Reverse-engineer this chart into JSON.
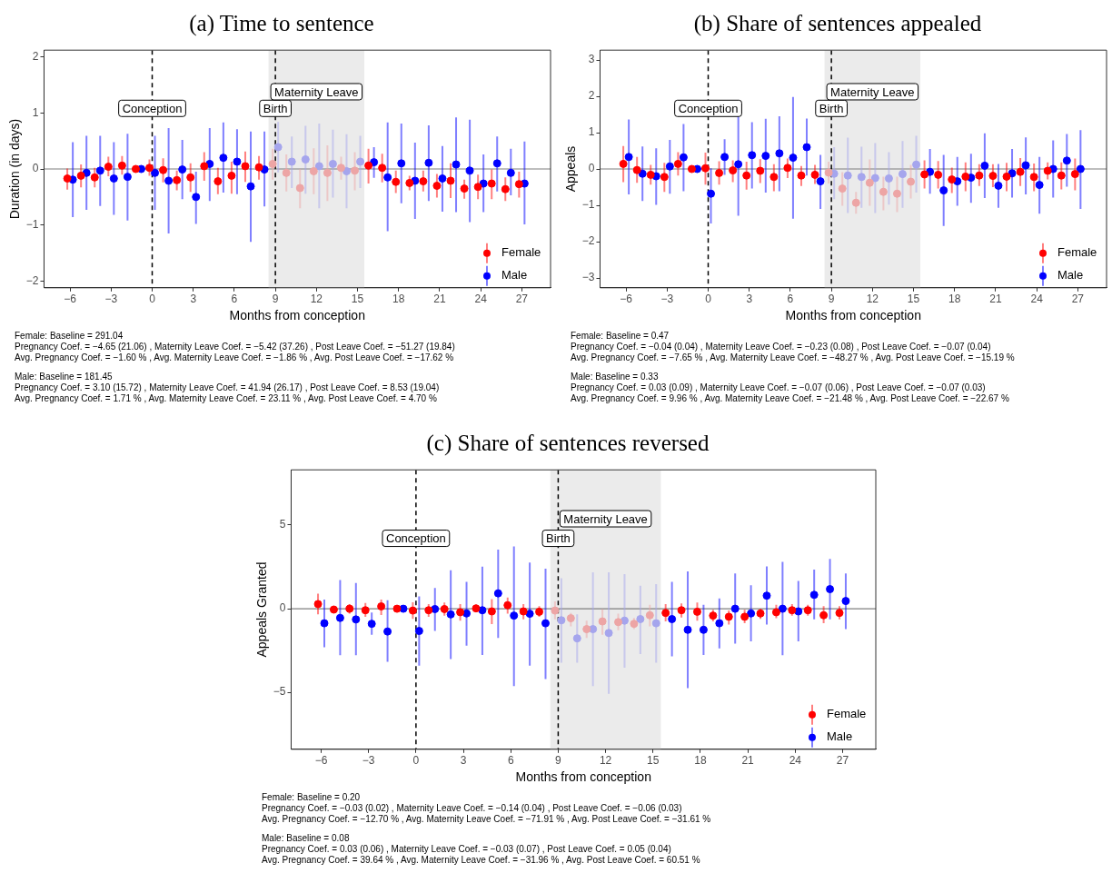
{
  "chart_data": [
    {
      "type": "scatter",
      "title": "(a) Time to sentence",
      "xlabel": "Months from conception",
      "ylabel": "Duration (in days)",
      "xlim": [
        -7.9,
        29.1
      ],
      "ylim": [
        -2.12,
        2.12
      ],
      "xticks": [
        -6,
        -3,
        0,
        3,
        6,
        9,
        12,
        15,
        18,
        21,
        24,
        27
      ],
      "yticks": [
        -2,
        -1,
        0,
        1,
        2
      ],
      "marker": "circle",
      "legend": "bottom right",
      "ref_lines": [
        {
          "axis": "y",
          "value": 0,
          "color": "#7f7f7f",
          "line_style": "solid"
        },
        {
          "axis": "x",
          "value": 0,
          "label": "Conception",
          "color": "#000000",
          "line_style": "dashed"
        },
        {
          "axis": "x",
          "value": 9,
          "label": "Birth",
          "color": "#000000",
          "line_style": "dashed"
        }
      ],
      "bands": [
        {
          "axis": "x",
          "from": 8.5,
          "to": 15.5,
          "label": "Maternity Leave",
          "color": "#ebebeb"
        }
      ],
      "series": [
        {
          "name": "Female",
          "color": "#ff0000",
          "x": [
            -6.2,
            -5.2,
            -4.2,
            -3.2,
            -2.2,
            -1.2,
            -0.2,
            0.8,
            1.8,
            2.8,
            3.8,
            4.8,
            5.8,
            6.8,
            7.8,
            8.8,
            9.8,
            10.8,
            11.8,
            12.8,
            13.8,
            14.8,
            15.8,
            16.8,
            17.8,
            18.8,
            19.8,
            20.8,
            21.8,
            22.8,
            23.8,
            24.8,
            25.8,
            26.8
          ],
          "colors": [
            "#ff0000",
            "#ff0000",
            "#ff0000",
            "#ff0000",
            "#ff0000",
            "#ff0000",
            "#ff0000",
            "#ff0000",
            "#ff0000",
            "#ff0000",
            "#ff0000",
            "#ff0000",
            "#ff0000",
            "#ff0000",
            "#ff0000",
            "#eda5a5",
            "#eda5a5",
            "#eda5a5",
            "#eda5a5",
            "#eda5a5",
            "#eda5a5",
            "#eda5a5",
            "#ff0000",
            "#ff0000",
            "#ff0000",
            "#ff0000",
            "#ff0000",
            "#ff0000",
            "#ff0000",
            "#ff0000",
            "#ff0000",
            "#ff0000",
            "#ff0000",
            "#ff0000"
          ],
          "values": [
            -0.17,
            -0.12,
            -0.15,
            0.04,
            0.06,
            0,
            0.02,
            -0.02,
            -0.2,
            -0.15,
            0.05,
            -0.22,
            -0.12,
            0.05,
            0.03,
            0.09,
            -0.07,
            -0.34,
            -0.04,
            -0.07,
            0.02,
            -0.03,
            0.06,
            0.02,
            -0.23,
            -0.25,
            -0.22,
            -0.3,
            -0.21,
            -0.35,
            -0.32,
            -0.26,
            -0.36,
            -0.27
          ],
          "errors": [
            [
              -0.37,
              0.01
            ],
            [
              -0.33,
              0.08
            ],
            [
              -0.33,
              0.02
            ],
            [
              -0.13,
              0.22
            ],
            [
              -0.1,
              0.23
            ],
            null,
            [
              -0.12,
              0.17
            ],
            [
              -0.24,
              0.19
            ],
            [
              -0.38,
              -0.03
            ],
            [
              -0.41,
              0.1
            ],
            [
              -0.21,
              0.3
            ],
            [
              -0.45,
              0.02
            ],
            [
              -0.44,
              0.13
            ],
            [
              -0.23,
              0.31
            ],
            [
              -0.19,
              0.23
            ],
            [
              -0.19,
              0.36
            ],
            [
              -0.4,
              0.26
            ],
            [
              -0.7,
              0
            ],
            [
              -0.45,
              0.37
            ],
            [
              -0.57,
              0.42
            ],
            [
              -0.19,
              0.22
            ],
            [
              -0.38,
              0.3
            ],
            [
              -0.26,
              0.36
            ],
            [
              -0.24,
              0.27
            ],
            [
              -0.43,
              -0.03
            ],
            [
              -0.38,
              -0.12
            ],
            [
              -0.4,
              -0.03
            ],
            [
              -0.51,
              -0.09
            ],
            [
              -0.52,
              0.1
            ],
            [
              -0.53,
              -0.19
            ],
            [
              -0.54,
              -0.1
            ],
            [
              -0.54,
              -0.01
            ],
            [
              -0.57,
              -0.15
            ],
            [
              -0.51,
              -0.05
            ]
          ]
        },
        {
          "name": "Male",
          "color": "#0000ff",
          "x": [
            -5.8,
            -4.8,
            -3.8,
            -2.8,
            -1.8,
            -0.8,
            0.2,
            1.2,
            2.2,
            3.2,
            4.2,
            5.2,
            6.2,
            7.2,
            8.2,
            9.2,
            10.2,
            11.2,
            12.2,
            13.2,
            14.2,
            15.2,
            16.2,
            17.2,
            18.2,
            19.2,
            20.2,
            21.2,
            22.2,
            23.2,
            24.2,
            25.2,
            26.2,
            27.2
          ],
          "colors": [
            "#0000ff",
            "#0000ff",
            "#0000ff",
            "#0000ff",
            "#0000ff",
            "#0000ff",
            "#0000ff",
            "#0000ff",
            "#0000ff",
            "#0000ff",
            "#0000ff",
            "#0000ff",
            "#0000ff",
            "#0000ff",
            "#0000ff",
            "#a5a5ed",
            "#a5a5ed",
            "#a5a5ed",
            "#a5a5ed",
            "#a5a5ed",
            "#a5a5ed",
            "#a5a5ed",
            "#0000ff",
            "#0000ff",
            "#0000ff",
            "#0000ff",
            "#0000ff",
            "#0000ff",
            "#0000ff",
            "#0000ff",
            "#0000ff",
            "#0000ff",
            "#0000ff",
            "#0000ff"
          ],
          "values": [
            -0.19,
            -0.07,
            -0.03,
            -0.17,
            -0.14,
            0,
            -0.07,
            -0.21,
            -0.01,
            -0.5,
            0.09,
            0.2,
            0.13,
            -0.31,
            -0.01,
            0.39,
            0.13,
            0.17,
            0.05,
            0.09,
            -0.04,
            0.13,
            0.12,
            -0.15,
            0.1,
            -0.21,
            0.11,
            -0.17,
            0.08,
            -0.03,
            -0.26,
            0.1,
            -0.07,
            -0.26
          ],
          "errors": [
            [
              -0.86,
              0.48
            ],
            [
              -0.73,
              0.59
            ],
            [
              -0.66,
              0.59
            ],
            [
              -0.82,
              0.48
            ],
            [
              -0.92,
              0.63
            ],
            null,
            [
              -0.73,
              0.59
            ],
            [
              -1.15,
              0.73
            ],
            [
              -0.54,
              0.52
            ],
            [
              -0.98,
              -0.05
            ],
            [
              -0.57,
              0.73
            ],
            [
              -0.42,
              0.83
            ],
            [
              -0.45,
              0.71
            ],
            [
              -1.3,
              0.67
            ],
            [
              -0.67,
              0.67
            ],
            [
              -0.06,
              0.84
            ],
            [
              -0.34,
              0.58
            ],
            [
              -0.44,
              0.77
            ],
            [
              -0.7,
              0.81
            ],
            [
              -0.51,
              0.7
            ],
            [
              -0.7,
              0.62
            ],
            [
              -0.34,
              0.59
            ],
            [
              -0.16,
              0.39
            ],
            [
              -1.11,
              0.83
            ],
            [
              -0.61,
              0.81
            ],
            [
              -0.89,
              0.47
            ],
            [
              -0.57,
              0.78
            ],
            [
              -0.76,
              0.41
            ],
            [
              -0.77,
              0.92
            ],
            [
              -0.95,
              0.88
            ],
            [
              -0.77,
              0.26
            ],
            [
              -0.4,
              0.58
            ],
            [
              -0.47,
              0.36
            ],
            [
              -0.99,
              0.49
            ]
          ]
        }
      ],
      "annotations": [
        "Female: Baseline = 291.04\nPregnancy Coef. = −4.65 (21.06) , Maternity Leave Coef. = −5.42 (37.26) , Post Leave Coef. = −51.27 (19.84)\nAvg. Pregnancy Coef. = −1.60 % , Avg. Maternity Leave Coef. = −1.86 % , Avg. Post Leave Coef. = −17.62 %",
        "Male: Baseline = 181.45\nPregnancy Coef. = 3.10 (15.72) , Maternity Leave Coef. = 41.94 (26.17) , Post Leave Coef. = 8.53 (19.04)\nAvg. Pregnancy Coef. = 1.71 % , Avg. Maternity Leave Coef. = 23.11 % , Avg. Post Leave Coef. = 4.70 %"
      ]
    },
    {
      "type": "scatter",
      "title": "(b) Share of sentences appealed",
      "xlabel": "Months from conception",
      "ylabel": "Appeals",
      "xlim": [
        -7.9,
        29.1
      ],
      "ylim": [
        -3.27,
        3.27
      ],
      "xticks": [
        -6,
        -3,
        0,
        3,
        6,
        9,
        12,
        15,
        18,
        21,
        24,
        27
      ],
      "yticks": [
        -3,
        -2,
        -1,
        0,
        1,
        2,
        3
      ],
      "marker": "circle",
      "legend": "bottom right",
      "ref_lines": [
        {
          "axis": "y",
          "value": 0,
          "color": "#7f7f7f",
          "line_style": "solid"
        },
        {
          "axis": "x",
          "value": 0,
          "label": "Conception",
          "color": "#000000",
          "line_style": "dashed"
        },
        {
          "axis": "x",
          "value": 9,
          "label": "Birth",
          "color": "#000000",
          "line_style": "dashed"
        }
      ],
      "bands": [
        {
          "axis": "x",
          "from": 8.5,
          "to": 15.5,
          "label": "Maternity Leave",
          "color": "#ebebeb"
        }
      ],
      "series": [
        {
          "name": "Female",
          "color": "#ff0000",
          "x": [
            -6.2,
            -5.2,
            -4.2,
            -3.2,
            -2.2,
            -1.2,
            -0.2,
            0.8,
            1.8,
            2.8,
            3.8,
            4.8,
            5.8,
            6.8,
            7.8,
            8.8,
            9.8,
            10.8,
            11.8,
            12.8,
            13.8,
            14.8,
            15.8,
            16.8,
            17.8,
            18.8,
            19.8,
            20.8,
            21.8,
            22.8,
            23.8,
            24.8,
            25.8,
            26.8
          ],
          "colors": [
            "#ff0000",
            "#ff0000",
            "#ff0000",
            "#ff0000",
            "#ff0000",
            "#ff0000",
            "#ff0000",
            "#ff0000",
            "#ff0000",
            "#ff0000",
            "#ff0000",
            "#ff0000",
            "#ff0000",
            "#ff0000",
            "#ff0000",
            "#eda5a5",
            "#eda5a5",
            "#eda5a5",
            "#eda5a5",
            "#eda5a5",
            "#eda5a5",
            "#eda5a5",
            "#ff0000",
            "#ff0000",
            "#ff0000",
            "#ff0000",
            "#ff0000",
            "#ff0000",
            "#ff0000",
            "#ff0000",
            "#ff0000",
            "#ff0000",
            "#ff0000",
            "#ff0000"
          ],
          "values": [
            0.14,
            -0.03,
            -0.16,
            -0.22,
            0.14,
            0,
            0.02,
            -0.11,
            -0.04,
            -0.18,
            -0.05,
            -0.22,
            0.03,
            -0.18,
            -0.16,
            -0.1,
            -0.54,
            -0.93,
            -0.38,
            -0.63,
            -0.68,
            -0.35,
            -0.15,
            -0.16,
            -0.29,
            -0.21,
            -0.18,
            -0.19,
            -0.21,
            -0.08,
            -0.22,
            -0.05,
            -0.18,
            -0.14
          ],
          "errors": [
            [
              -0.36,
              0.63
            ],
            [
              -0.38,
              0.33
            ],
            [
              -0.43,
              0.11
            ],
            [
              -0.63,
              0.17
            ],
            [
              -0.18,
              0.46
            ],
            null,
            [
              -0.43,
              0.45
            ],
            [
              -0.43,
              0.21
            ],
            [
              -0.36,
              0.24
            ],
            [
              -0.57,
              0.2
            ],
            [
              -0.39,
              0.27
            ],
            [
              -0.61,
              0.13
            ],
            [
              -0.25,
              0.29
            ],
            [
              -0.47,
              0.08
            ],
            [
              -0.41,
              0.11
            ],
            [
              -0.4,
              0.2
            ],
            [
              -1.01,
              -0.09
            ],
            [
              -1.23,
              -0.63
            ],
            [
              -1.01,
              0.26
            ],
            [
              -1.14,
              -0.21
            ],
            [
              -1.19,
              -0.21
            ],
            [
              -0.81,
              0.11
            ],
            [
              -0.54,
              0.24
            ],
            [
              -0.54,
              0.22
            ],
            [
              -0.66,
              0.04
            ],
            [
              -0.61,
              0.18
            ],
            [
              -0.47,
              0.13
            ],
            [
              -0.5,
              0.13
            ],
            [
              -0.61,
              0.17
            ],
            [
              -0.47,
              0.3
            ],
            [
              -0.61,
              0.15
            ],
            [
              -0.29,
              0.18
            ],
            [
              -0.56,
              0.18
            ],
            [
              -0.59,
              0.29
            ]
          ]
        },
        {
          "name": "Male",
          "color": "#0000ff",
          "x": [
            -5.8,
            -4.8,
            -3.8,
            -2.8,
            -1.8,
            -0.8,
            0.2,
            1.2,
            2.2,
            3.2,
            4.2,
            5.2,
            6.2,
            7.2,
            8.2,
            9.2,
            10.2,
            11.2,
            12.2,
            13.2,
            14.2,
            15.2,
            16.2,
            17.2,
            18.2,
            19.2,
            20.2,
            21.2,
            22.2,
            23.2,
            24.2,
            25.2,
            26.2,
            27.2
          ],
          "colors": [
            "#0000ff",
            "#0000ff",
            "#0000ff",
            "#0000ff",
            "#0000ff",
            "#0000ff",
            "#0000ff",
            "#0000ff",
            "#0000ff",
            "#0000ff",
            "#0000ff",
            "#0000ff",
            "#0000ff",
            "#0000ff",
            "#0000ff",
            "#a5a5ed",
            "#a5a5ed",
            "#a5a5ed",
            "#a5a5ed",
            "#a5a5ed",
            "#a5a5ed",
            "#a5a5ed",
            "#0000ff",
            "#0000ff",
            "#0000ff",
            "#0000ff",
            "#0000ff",
            "#0000ff",
            "#0000ff",
            "#0000ff",
            "#0000ff",
            "#0000ff",
            "#0000ff",
            "#0000ff"
          ],
          "values": [
            0.33,
            -0.13,
            -0.2,
            0.07,
            0.32,
            0,
            -0.68,
            0.33,
            0.13,
            0.38,
            0.36,
            0.43,
            0.31,
            0.6,
            -0.34,
            -0.13,
            -0.18,
            -0.22,
            -0.25,
            -0.26,
            -0.14,
            0.12,
            -0.08,
            -0.59,
            -0.34,
            -0.24,
            0.09,
            -0.46,
            -0.12,
            0.1,
            -0.44,
            0,
            0.23,
            0
          ],
          "errors": [
            [
              -0.7,
              1.36
            ],
            [
              -0.88,
              0.62
            ],
            [
              -0.99,
              0.57
            ],
            [
              -0.68,
              0.8
            ],
            [
              -0.61,
              1.24
            ],
            null,
            [
              -1.5,
              0.02
            ],
            [
              -0.16,
              0.82
            ],
            [
              -1.29,
              1.56
            ],
            [
              -0.54,
              1.29
            ],
            [
              -0.65,
              1.38
            ],
            [
              -0.61,
              1.45
            ],
            [
              -1.37,
              1.98
            ],
            [
              -0.18,
              1.39
            ],
            [
              -1.1,
              0.39
            ],
            [
              -0.83,
              0.6
            ],
            [
              -1.21,
              0.86
            ],
            [
              -1.07,
              0.61
            ],
            [
              -1.21,
              0.71
            ],
            [
              -0.98,
              0.46
            ],
            [
              -1.07,
              0.77
            ],
            [
              -0.65,
              0.91
            ],
            [
              -0.68,
              0.55
            ],
            [
              -1.57,
              0.39
            ],
            [
              -1.01,
              0.33
            ],
            [
              -0.93,
              0.42
            ],
            [
              -0.8,
              0.98
            ],
            [
              -1.07,
              0.14
            ],
            [
              -0.79,
              0.55
            ],
            [
              -0.7,
              0.87
            ],
            [
              -1.23,
              0.33
            ],
            [
              -0.79,
              0.79
            ],
            [
              -0.49,
              0.96
            ],
            [
              -1.1,
              1.07
            ]
          ]
        }
      ],
      "annotations": [
        "Female: Baseline = 0.47\nPregnancy Coef. = −0.04 (0.04) , Maternity Leave Coef. = −0.23 (0.08) , Post Leave Coef. = −0.07 (0.04)\nAvg. Pregnancy Coef. = −7.65 % , Avg. Maternity Leave Coef. = −48.27 % , Avg. Post Leave Coef. = −15.19 %",
        "Male: Baseline = 0.33\nPregnancy Coef. = 0.03 (0.09) , Maternity Leave Coef. = −0.07 (0.06) , Post Leave Coef. = −0.07 (0.03)\nAvg. Pregnancy Coef. = 9.96 % , Avg. Maternity Leave Coef. = −21.48 % , Avg. Post Leave Coef. = −22.67 %"
      ]
    },
    {
      "type": "scatter",
      "title": "(c) Share of sentences reversed",
      "xlabel": "Months from conception",
      "ylabel": "Appeals Granted",
      "xlim": [
        -7.9,
        29.1
      ],
      "ylim": [
        -8.4,
        8.3
      ],
      "xticks": [
        -6,
        -3,
        0,
        3,
        6,
        9,
        12,
        15,
        18,
        21,
        24,
        27
      ],
      "yticks": [
        -5,
        0,
        5
      ],
      "marker": "circle",
      "legend": "bottom right",
      "ref_lines": [
        {
          "axis": "y",
          "value": 0,
          "color": "#7f7f7f",
          "line_style": "solid"
        },
        {
          "axis": "x",
          "value": 0,
          "label": "Conception",
          "color": "#000000",
          "line_style": "dashed"
        },
        {
          "axis": "x",
          "value": 9,
          "label": "Birth",
          "color": "#000000",
          "line_style": "dashed"
        }
      ],
      "bands": [
        {
          "axis": "x",
          "from": 8.5,
          "to": 15.5,
          "label": "Maternity Leave",
          "color": "#ebebeb"
        }
      ],
      "series": [
        {
          "name": "Female",
          "color": "#ff0000",
          "x": [
            -6.2,
            -5.2,
            -4.2,
            -3.2,
            -2.2,
            -1.2,
            -0.2,
            0.8,
            1.8,
            2.8,
            3.8,
            4.8,
            5.8,
            6.8,
            7.8,
            8.8,
            9.8,
            10.8,
            11.8,
            12.8,
            13.8,
            14.8,
            15.8,
            16.8,
            17.8,
            18.8,
            19.8,
            20.8,
            21.8,
            22.8,
            23.8,
            24.8,
            25.8,
            26.8
          ],
          "colors": [
            "#ff0000",
            "#ff0000",
            "#ff0000",
            "#ff0000",
            "#ff0000",
            "#ff0000",
            "#ff0000",
            "#ff0000",
            "#ff0000",
            "#ff0000",
            "#ff0000",
            "#ff0000",
            "#ff0000",
            "#ff0000",
            "#ff0000",
            "#eda5a5",
            "#eda5a5",
            "#eda5a5",
            "#eda5a5",
            "#eda5a5",
            "#eda5a5",
            "#eda5a5",
            "#ff0000",
            "#ff0000",
            "#ff0000",
            "#ff0000",
            "#ff0000",
            "#ff0000",
            "#ff0000",
            "#ff0000",
            "#ff0000",
            "#ff0000",
            "#ff0000",
            "#ff0000"
          ],
          "values": [
            0.28,
            -0.05,
            0,
            -0.09,
            0.14,
            0,
            -0.11,
            -0.09,
            -0.02,
            -0.21,
            0.02,
            -0.16,
            0.21,
            -0.16,
            -0.18,
            -0.11,
            -0.57,
            -1.22,
            -0.76,
            -0.8,
            -0.9,
            -0.39,
            -0.25,
            -0.09,
            -0.18,
            -0.41,
            -0.48,
            -0.48,
            -0.28,
            -0.21,
            -0.09,
            -0.09,
            -0.39,
            -0.25
          ],
          "errors": [
            [
              -0.34,
              0.9
            ],
            [
              -0.25,
              0.16
            ],
            [
              -0.3,
              0.28
            ],
            [
              -0.48,
              0.34
            ],
            [
              -0.37,
              0.55
            ],
            null,
            [
              -0.6,
              0.39
            ],
            [
              -0.48,
              0.28
            ],
            [
              -0.41,
              0.37
            ],
            [
              -0.71,
              0.28
            ],
            [
              -0.21,
              0.23
            ],
            [
              -0.92,
              0.57
            ],
            [
              -0.3,
              0.67
            ],
            [
              -0.64,
              0.28
            ],
            [
              -0.48,
              0.16
            ],
            [
              -0.64,
              0.44
            ],
            [
              -1.06,
              -0.25
            ],
            [
              -1.75,
              -0.71
            ],
            [
              -1.56,
              -0.02
            ],
            [
              -1.29,
              -0.3
            ],
            [
              -1.22,
              -0.55
            ],
            [
              -1.06,
              0.23
            ],
            [
              -0.76,
              0.28
            ],
            [
              -0.53,
              0.32
            ],
            [
              -0.71,
              0.37
            ],
            [
              -0.76,
              -0.07
            ],
            [
              -0.94,
              -0.11
            ],
            [
              -0.87,
              -0.07
            ],
            [
              -0.6,
              0
            ],
            [
              -0.57,
              0.23
            ],
            [
              -0.41,
              0.28
            ],
            [
              -0.41,
              0.23
            ],
            [
              -0.87,
              0.16
            ],
            [
              -0.64,
              0.16
            ]
          ]
        },
        {
          "name": "Male",
          "color": "#0000ff",
          "x": [
            -5.8,
            -4.8,
            -3.8,
            -2.8,
            -1.8,
            -0.8,
            0.2,
            1.2,
            2.2,
            3.2,
            4.2,
            5.2,
            6.2,
            7.2,
            8.2,
            9.2,
            10.2,
            11.2,
            12.2,
            13.2,
            14.2,
            15.2,
            16.2,
            17.2,
            18.2,
            19.2,
            20.2,
            21.2,
            22.2,
            23.2,
            24.2,
            25.2,
            26.2,
            27.2
          ],
          "colors": [
            "#0000ff",
            "#0000ff",
            "#0000ff",
            "#0000ff",
            "#0000ff",
            "#0000ff",
            "#0000ff",
            "#0000ff",
            "#0000ff",
            "#0000ff",
            "#0000ff",
            "#0000ff",
            "#0000ff",
            "#0000ff",
            "#0000ff",
            "#a5a5ed",
            "#a5a5ed",
            "#a5a5ed",
            "#a5a5ed",
            "#a5a5ed",
            "#a5a5ed",
            "#a5a5ed",
            "#0000ff",
            "#0000ff",
            "#0000ff",
            "#0000ff",
            "#0000ff",
            "#0000ff",
            "#0000ff",
            "#0000ff",
            "#0000ff",
            "#0000ff",
            "#0000ff",
            "#0000ff"
          ],
          "values": [
            -0.87,
            -0.55,
            -0.64,
            -0.9,
            -1.36,
            0,
            -1.33,
            -0.02,
            -0.34,
            -0.28,
            -0.09,
            0.92,
            -0.41,
            -0.3,
            -0.87,
            -0.69,
            -1.77,
            -1.22,
            -1.45,
            -0.71,
            -0.62,
            -0.87,
            -0.62,
            -1.26,
            -1.26,
            -0.87,
            0,
            -0.28,
            0.78,
            0,
            -0.16,
            0.83,
            1.17,
            0.46
          ],
          "errors": [
            [
              -2.3,
              0.55
            ],
            [
              -2.78,
              1.72
            ],
            [
              -2.78,
              1.54
            ],
            [
              -1.56,
              -0.23
            ],
            [
              -3.17,
              0.51
            ],
            null,
            [
              -3.4,
              0.74
            ],
            [
              -1.33,
              1.24
            ],
            [
              -3.01,
              2.3
            ],
            [
              -2.21,
              1.61
            ],
            [
              -2.76,
              2.51
            ],
            [
              -1.75,
              3.54
            ],
            [
              -4.62,
              3.72
            ],
            [
              -3.4,
              2.76
            ],
            [
              -4.21,
              2.39
            ],
            [
              -3.22,
              1.82
            ],
            [
              -3.22,
              -0.34
            ],
            [
              -4.62,
              2.18
            ],
            [
              -5.08,
              2.18
            ],
            [
              -3.52,
              2.07
            ],
            [
              -2.71,
              1.38
            ],
            [
              -3.22,
              1.47
            ],
            [
              -2.85,
              1.61
            ],
            [
              -4.74,
              2.23
            ],
            [
              -2.76,
              0.23
            ],
            [
              -2.37,
              0.62
            ],
            [
              -2.09,
              2.11
            ],
            [
              -1.95,
              1.4
            ],
            [
              -0.94,
              2.53
            ],
            [
              -2.78,
              2.8
            ],
            [
              -1.95,
              1.66
            ],
            [
              -0.64,
              2.34
            ],
            [
              -0.64,
              2.97
            ],
            [
              -1.22,
              2.11
            ]
          ]
        }
      ],
      "annotations": [
        "Female: Baseline = 0.20\nPregnancy Coef. = −0.03 (0.02) , Maternity Leave Coef. = −0.14 (0.04) , Post Leave Coef. = −0.06 (0.03)\nAvg. Pregnancy Coef. = −12.70 % , Avg. Maternity Leave Coef. = −71.91 % , Avg. Post Leave Coef. = −31.61 %",
        "Male: Baseline = 0.08\nPregnancy Coef. = 0.03 (0.06) , Maternity Leave Coef. = −0.03 (0.07) , Post Leave Coef. = 0.05 (0.04)\nAvg. Pregnancy Coef. = 39.64 % , Avg. Maternity Leave Coef. = −31.96 % , Avg. Post Leave Coef. = 60.51 %"
      ]
    }
  ]
}
